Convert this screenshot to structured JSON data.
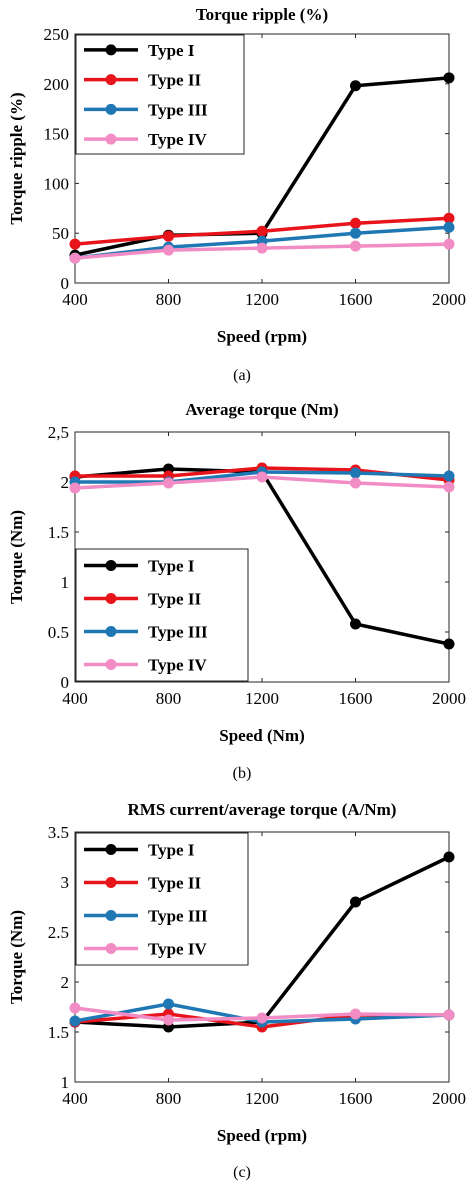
{
  "chart_data": [
    {
      "type": "line",
      "title": "Torque ripple (%)",
      "xlabel": "Speed (rpm)",
      "ylabel": "Torque ripple (%)",
      "caption": "(a)",
      "x": [
        400,
        800,
        1200,
        1600,
        2000
      ],
      "xticks": [
        "400",
        "800",
        "1200",
        "1600",
        "2000"
      ],
      "yticks": [
        "0",
        "50",
        "100",
        "150",
        "200",
        "250"
      ],
      "xlim": [
        400,
        2000
      ],
      "ylim": [
        0,
        250
      ],
      "grid": false,
      "legend_position": "top-left",
      "series": [
        {
          "name": "Type I",
          "color": "#000000",
          "values": [
            28,
            48,
            50,
            198,
            206
          ]
        },
        {
          "name": "Type II",
          "color": "#e8141b",
          "values": [
            39,
            47,
            52,
            60,
            65
          ]
        },
        {
          "name": "Type III",
          "color": "#1f77b4",
          "values": [
            25,
            36,
            42,
            50,
            56
          ]
        },
        {
          "name": "Type IV",
          "color": "#f28cc4",
          "values": [
            25,
            33,
            35,
            37,
            39
          ]
        }
      ]
    },
    {
      "type": "line",
      "title": "Average torque (Nm)",
      "xlabel": "Speed (Nm)",
      "ylabel": "Torque (Nm)",
      "caption": "(b)",
      "x": [
        400,
        800,
        1200,
        1600,
        2000
      ],
      "xticks": [
        "400",
        "800",
        "1200",
        "1600",
        "2000"
      ],
      "yticks": [
        "0",
        "0.5",
        "1",
        "1.5",
        "2",
        "2,5"
      ],
      "xlim": [
        400,
        2000
      ],
      "ylim": [
        0,
        2.5
      ],
      "grid": false,
      "legend_position": "bottom-left",
      "series": [
        {
          "name": "Type I",
          "color": "#000000",
          "values": [
            2.05,
            2.13,
            2.1,
            0.58,
            0.38
          ]
        },
        {
          "name": "Type II",
          "color": "#e8141b",
          "values": [
            2.06,
            2.06,
            2.14,
            2.12,
            2.02
          ]
        },
        {
          "name": "Type III",
          "color": "#1f77b4",
          "values": [
            2.0,
            2.0,
            2.1,
            2.09,
            2.06
          ]
        },
        {
          "name": "Type IV",
          "color": "#f28cc4",
          "values": [
            1.94,
            1.99,
            2.05,
            1.99,
            1.95
          ]
        }
      ]
    },
    {
      "type": "line",
      "title": "RMS current/average torque (A/Nm)",
      "xlabel": "Speed (rpm)",
      "ylabel": "Torque (Nm)",
      "caption": "(c)",
      "x": [
        400,
        800,
        1200,
        1600,
        2000
      ],
      "xticks": [
        "400",
        "800",
        "1200",
        "1600",
        "2000"
      ],
      "yticks": [
        "1",
        "1.5",
        "2",
        "2.5",
        "3",
        "3.5"
      ],
      "xlim": [
        400,
        2000
      ],
      "ylim": [
        1,
        3.5
      ],
      "grid": false,
      "legend_position": "top-left",
      "series": [
        {
          "name": "Type I",
          "color": "#000000",
          "values": [
            1.6,
            1.55,
            1.6,
            2.8,
            3.25
          ]
        },
        {
          "name": "Type II",
          "color": "#e8141b",
          "values": [
            1.6,
            1.68,
            1.55,
            1.67,
            1.67
          ]
        },
        {
          "name": "Type III",
          "color": "#1f77b4",
          "values": [
            1.61,
            1.78,
            1.6,
            1.63,
            1.67
          ]
        },
        {
          "name": "Type IV",
          "color": "#f28cc4",
          "values": [
            1.74,
            1.62,
            1.64,
            1.68,
            1.67
          ]
        }
      ]
    }
  ]
}
